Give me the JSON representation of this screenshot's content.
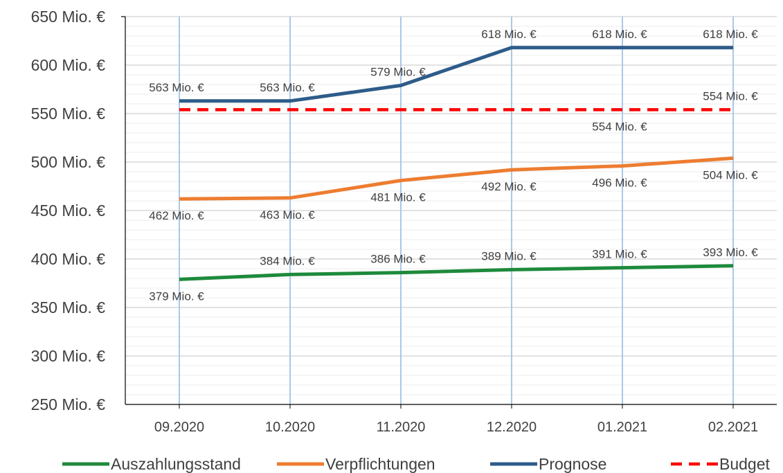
{
  "chart_data": {
    "type": "line",
    "categories": [
      "09.2020",
      "10.2020",
      "11.2020",
      "12.2020",
      "01.2021",
      "02.2021"
    ],
    "ylim": [
      250,
      650
    ],
    "y_major_step": 50,
    "y_minor_step": 10,
    "y_tick_labels": [
      "250 Mio. €",
      "300 Mio. €",
      "350 Mio. €",
      "400 Mio. €",
      "450 Mio. €",
      "500 Mio. €",
      "550 Mio. €",
      "600 Mio. €",
      "650 Mio. €"
    ],
    "vertical_grid": true,
    "legend_position": "bottom",
    "series": [
      {
        "name": "Auszahlungsstand",
        "color": "#1e8a3c",
        "dashed": false,
        "values": [
          379,
          384,
          386,
          389,
          391,
          393
        ],
        "labels": [
          "379 Mio. €",
          "384 Mio. €",
          "386 Mio. €",
          "389 Mio. €",
          "391 Mio. €",
          "393 Mio. €"
        ],
        "label_pos": [
          "below",
          "above",
          "above",
          "above",
          "above",
          "above"
        ]
      },
      {
        "name": "Verpflichtungen",
        "color": "#ed7d31",
        "dashed": false,
        "values": [
          462,
          463,
          481,
          492,
          496,
          504
        ],
        "labels": [
          "462 Mio. €",
          "463 Mio. €",
          "481 Mio. €",
          "492 Mio. €",
          "496 Mio. €",
          "504 Mio. €"
        ],
        "label_pos": [
          "below",
          "below",
          "below",
          "below",
          "below",
          "below"
        ]
      },
      {
        "name": "Prognose",
        "color": "#2e5c8a",
        "dashed": false,
        "values": [
          563,
          563,
          579,
          618,
          618,
          618
        ],
        "labels": [
          "563 Mio. €",
          "563 Mio. €",
          "579 Mio. €",
          "618 Mio. €",
          "618 Mio. €",
          "618 Mio. €"
        ],
        "label_pos": [
          "above",
          "above",
          "above",
          "above",
          "above",
          "above"
        ]
      },
      {
        "name": "Budget",
        "color": "#ff0000",
        "dashed": true,
        "values": [
          554,
          554,
          554,
          554,
          554,
          554
        ],
        "labels": [
          "",
          "",
          "",
          "",
          "554 Mio. €",
          "554 Mio. €"
        ],
        "label_pos": [
          "below",
          "below",
          "below",
          "below",
          "below",
          "above"
        ]
      }
    ]
  }
}
